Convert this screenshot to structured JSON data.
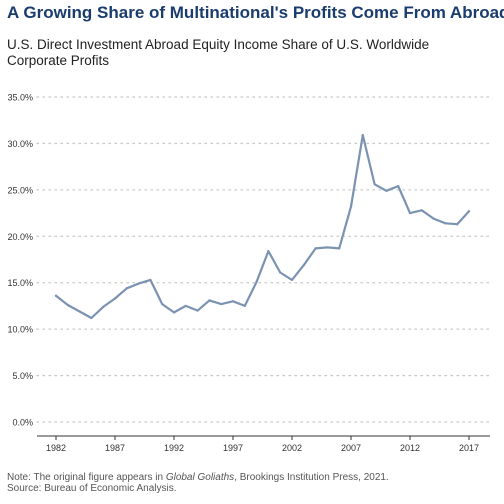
{
  "title": "A Growing Share of Multinational's Profits Come From Abroad",
  "subtitle": "U.S. Direct Investment Abroad Equity Income Share of U.S. Worldwide Corporate Profits",
  "note": {
    "prefix": "Note: The original figure appears in ",
    "book": "Global Goliaths",
    "suffix": ", Brookings Institution Press, 2021.",
    "source": "Source: Bureau of Economic Analysis."
  },
  "colors": {
    "line": "#7b93b1",
    "title": "#1a3c6e",
    "grid": "#c8c8c8"
  },
  "chart_data": {
    "type": "line",
    "xlim": [
      1982,
      2017
    ],
    "ylim": [
      0,
      0.35
    ],
    "x_ticks": [
      1982,
      1987,
      1992,
      1997,
      2002,
      2007,
      2012,
      2017
    ],
    "y_ticks": [
      0,
      0.05,
      0.1,
      0.15,
      0.2,
      0.25,
      0.3,
      0.35
    ],
    "y_tick_labels": [
      "0.0%",
      "5.0%",
      "10.0%",
      "15.0%",
      "20.0%",
      "25.0%",
      "30.0%",
      "35.0%"
    ],
    "grid": "horizontal dotted",
    "series": [
      {
        "x": [
          1982,
          1983,
          1984,
          1985,
          1986,
          1987,
          1988,
          1989,
          1990,
          1991,
          1992,
          1993,
          1994,
          1995,
          1996,
          1997,
          1998,
          1999,
          2000,
          2001,
          2002,
          2003,
          2004,
          2005,
          2006,
          2007,
          2008,
          2009,
          2010,
          2011,
          2012,
          2013,
          2014,
          2015,
          2016,
          2017
        ],
        "y": [
          0.136,
          0.126,
          0.119,
          0.112,
          0.124,
          0.133,
          0.144,
          0.149,
          0.153,
          0.127,
          0.118,
          0.125,
          0.12,
          0.131,
          0.127,
          0.13,
          0.125,
          0.151,
          0.184,
          0.161,
          0.153,
          0.169,
          0.187,
          0.188,
          0.187,
          0.232,
          0.309,
          0.256,
          0.249,
          0.254,
          0.225,
          0.228,
          0.219,
          0.214,
          0.213,
          0.227
        ]
      }
    ]
  }
}
